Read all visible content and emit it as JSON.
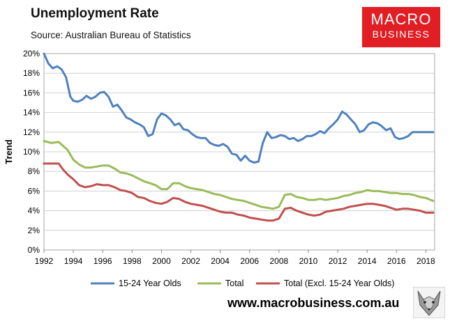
{
  "header": {
    "title": "Unemployment Rate",
    "subtitle": "Source: Australian Bureau of Statistics"
  },
  "logo": {
    "line1": "MACRO",
    "line2": "BUSINESS",
    "color": "#e01e24"
  },
  "footer": {
    "website": "www.macrobusiness.com.au",
    "mascot_icon": "wolf-icon"
  },
  "chart_data": {
    "type": "line",
    "title": "Unemployment Rate",
    "xlabel": "",
    "ylabel": "Trend",
    "xlim": [
      1992,
      2018.6
    ],
    "ylim": [
      0,
      20
    ],
    "y_ticks": [
      "0%",
      "2%",
      "4%",
      "6%",
      "8%",
      "10%",
      "12%",
      "14%",
      "16%",
      "18%",
      "20%"
    ],
    "x_ticks": [
      "1992",
      "1994",
      "1996",
      "1998",
      "2000",
      "2002",
      "2004",
      "2006",
      "2008",
      "2010",
      "2012",
      "2014",
      "2016",
      "2018"
    ],
    "grid": true,
    "legend_position": "bottom",
    "series": [
      {
        "name": "15-24 Year Olds",
        "color": "#4f81bd",
        "x": [
          1992,
          1992.3,
          1992.6,
          1992.9,
          1993.2,
          1993.5,
          1993.8,
          1994.0,
          1994.3,
          1994.6,
          1994.9,
          1995.2,
          1995.5,
          1995.8,
          1996.1,
          1996.4,
          1996.7,
          1997.0,
          1997.3,
          1997.6,
          1997.9,
          1998.2,
          1998.5,
          1998.8,
          1999.1,
          1999.4,
          1999.7,
          2000.0,
          2000.3,
          2000.6,
          2000.9,
          2001.2,
          2001.5,
          2001.8,
          2002.1,
          2002.4,
          2002.7,
          2003.0,
          2003.3,
          2003.6,
          2003.9,
          2004.2,
          2004.5,
          2004.8,
          2005.1,
          2005.4,
          2005.7,
          2006.0,
          2006.3,
          2006.6,
          2006.9,
          2007.2,
          2007.5,
          2007.8,
          2008.1,
          2008.4,
          2008.7,
          2009.0,
          2009.3,
          2009.6,
          2009.9,
          2010.2,
          2010.5,
          2010.8,
          2011.1,
          2011.4,
          2011.7,
          2012.0,
          2012.3,
          2012.6,
          2012.9,
          2013.2,
          2013.5,
          2013.8,
          2014.1,
          2014.4,
          2014.7,
          2015.0,
          2015.3,
          2015.6,
          2015.9,
          2016.2,
          2016.5,
          2016.8,
          2017.1,
          2017.4,
          2017.7,
          2018.0,
          2018.3,
          2018.5
        ],
        "values": [
          20.0,
          19.0,
          18.5,
          18.7,
          18.4,
          17.6,
          15.6,
          15.2,
          15.1,
          15.3,
          15.7,
          15.4,
          15.6,
          16.0,
          16.1,
          15.6,
          14.6,
          14.8,
          14.2,
          13.5,
          13.3,
          13.0,
          12.8,
          12.5,
          11.6,
          11.8,
          13.3,
          13.9,
          13.7,
          13.3,
          12.7,
          12.9,
          12.3,
          12.2,
          11.8,
          11.5,
          11.4,
          11.4,
          10.9,
          10.7,
          10.6,
          10.8,
          10.5,
          9.8,
          9.7,
          9.1,
          9.6,
          9.1,
          8.9,
          9.0,
          10.9,
          12.0,
          11.4,
          11.5,
          11.7,
          11.6,
          11.3,
          11.4,
          11.1,
          11.3,
          11.6,
          11.6,
          11.8,
          12.1,
          11.9,
          12.4,
          12.8,
          13.3,
          14.1,
          13.8,
          13.3,
          12.8,
          12.0,
          12.2,
          12.8,
          13.0,
          12.9,
          12.6,
          12.2,
          12.4,
          11.5,
          11.3,
          11.4,
          11.6,
          12.0,
          12.0,
          12.0,
          12.0,
          12.0,
          12.0
        ],
        "x_note": "resampled"
      },
      {
        "name": "Total",
        "color": "#9bbb59",
        "x": [
          1992,
          1992.5,
          1993.0,
          1993.3,
          1993.6,
          1994.0,
          1994.4,
          1994.8,
          1995.2,
          1995.6,
          1996.0,
          1996.4,
          1996.8,
          1997.2,
          1997.6,
          1998.0,
          1998.4,
          1998.8,
          1999.2,
          1999.6,
          2000.0,
          2000.4,
          2000.8,
          2001.2,
          2001.6,
          2002.0,
          2002.4,
          2002.8,
          2003.2,
          2003.6,
          2004.0,
          2004.4,
          2004.8,
          2005.2,
          2005.6,
          2006.0,
          2006.4,
          2006.8,
          2007.2,
          2007.6,
          2008.0,
          2008.4,
          2008.8,
          2009.2,
          2009.6,
          2010.0,
          2010.4,
          2010.8,
          2011.2,
          2011.6,
          2012.0,
          2012.4,
          2012.8,
          2013.2,
          2013.6,
          2014.0,
          2014.4,
          2014.8,
          2015.2,
          2015.6,
          2016.0,
          2016.4,
          2016.8,
          2017.2,
          2017.6,
          2018.0,
          2018.5
        ],
        "values": [
          11.1,
          10.9,
          11.0,
          10.6,
          10.2,
          9.2,
          8.7,
          8.4,
          8.4,
          8.5,
          8.6,
          8.6,
          8.3,
          7.9,
          7.8,
          7.6,
          7.3,
          7.0,
          6.8,
          6.6,
          6.2,
          6.2,
          6.8,
          6.8,
          6.5,
          6.3,
          6.2,
          6.1,
          5.9,
          5.7,
          5.6,
          5.4,
          5.2,
          5.1,
          5.0,
          4.8,
          4.6,
          4.4,
          4.3,
          4.2,
          4.4,
          5.6,
          5.7,
          5.4,
          5.3,
          5.1,
          5.1,
          5.2,
          5.1,
          5.2,
          5.3,
          5.5,
          5.6,
          5.8,
          5.9,
          6.1,
          6.0,
          6.0,
          5.9,
          5.8,
          5.8,
          5.7,
          5.7,
          5.6,
          5.4,
          5.3,
          5.0
        ]
      },
      {
        "name": "Total (Excl. 15-24 Year Olds)",
        "color": "#c0504d",
        "x": [
          1992,
          1992.5,
          1993.0,
          1993.3,
          1993.6,
          1994.0,
          1994.4,
          1994.8,
          1995.2,
          1995.6,
          1996.0,
          1996.4,
          1996.8,
          1997.2,
          1997.6,
          1998.0,
          1998.4,
          1998.8,
          1999.2,
          1999.6,
          2000.0,
          2000.4,
          2000.8,
          2001.2,
          2001.6,
          2002.0,
          2002.4,
          2002.8,
          2003.2,
          2003.6,
          2004.0,
          2004.4,
          2004.8,
          2005.2,
          2005.6,
          2006.0,
          2006.4,
          2006.8,
          2007.2,
          2007.6,
          2008.0,
          2008.4,
          2008.8,
          2009.2,
          2009.6,
          2010.0,
          2010.4,
          2010.8,
          2011.2,
          2011.6,
          2012.0,
          2012.4,
          2012.8,
          2013.2,
          2013.6,
          2014.0,
          2014.4,
          2014.8,
          2015.2,
          2015.6,
          2016.0,
          2016.4,
          2016.8,
          2017.2,
          2017.6,
          2018.0,
          2018.5
        ],
        "values": [
          8.8,
          8.8,
          8.8,
          8.2,
          7.7,
          7.2,
          6.6,
          6.4,
          6.5,
          6.7,
          6.6,
          6.6,
          6.4,
          6.1,
          6.0,
          5.8,
          5.4,
          5.3,
          5.0,
          4.8,
          4.7,
          4.9,
          5.3,
          5.2,
          4.9,
          4.7,
          4.6,
          4.5,
          4.3,
          4.1,
          3.9,
          3.8,
          3.8,
          3.6,
          3.5,
          3.3,
          3.2,
          3.1,
          3.0,
          3.0,
          3.2,
          4.2,
          4.3,
          4.0,
          3.8,
          3.6,
          3.5,
          3.6,
          3.9,
          4.0,
          4.1,
          4.2,
          4.4,
          4.5,
          4.6,
          4.7,
          4.7,
          4.6,
          4.5,
          4.3,
          4.1,
          4.2,
          4.2,
          4.1,
          4.0,
          3.8,
          3.8
        ]
      }
    ]
  }
}
